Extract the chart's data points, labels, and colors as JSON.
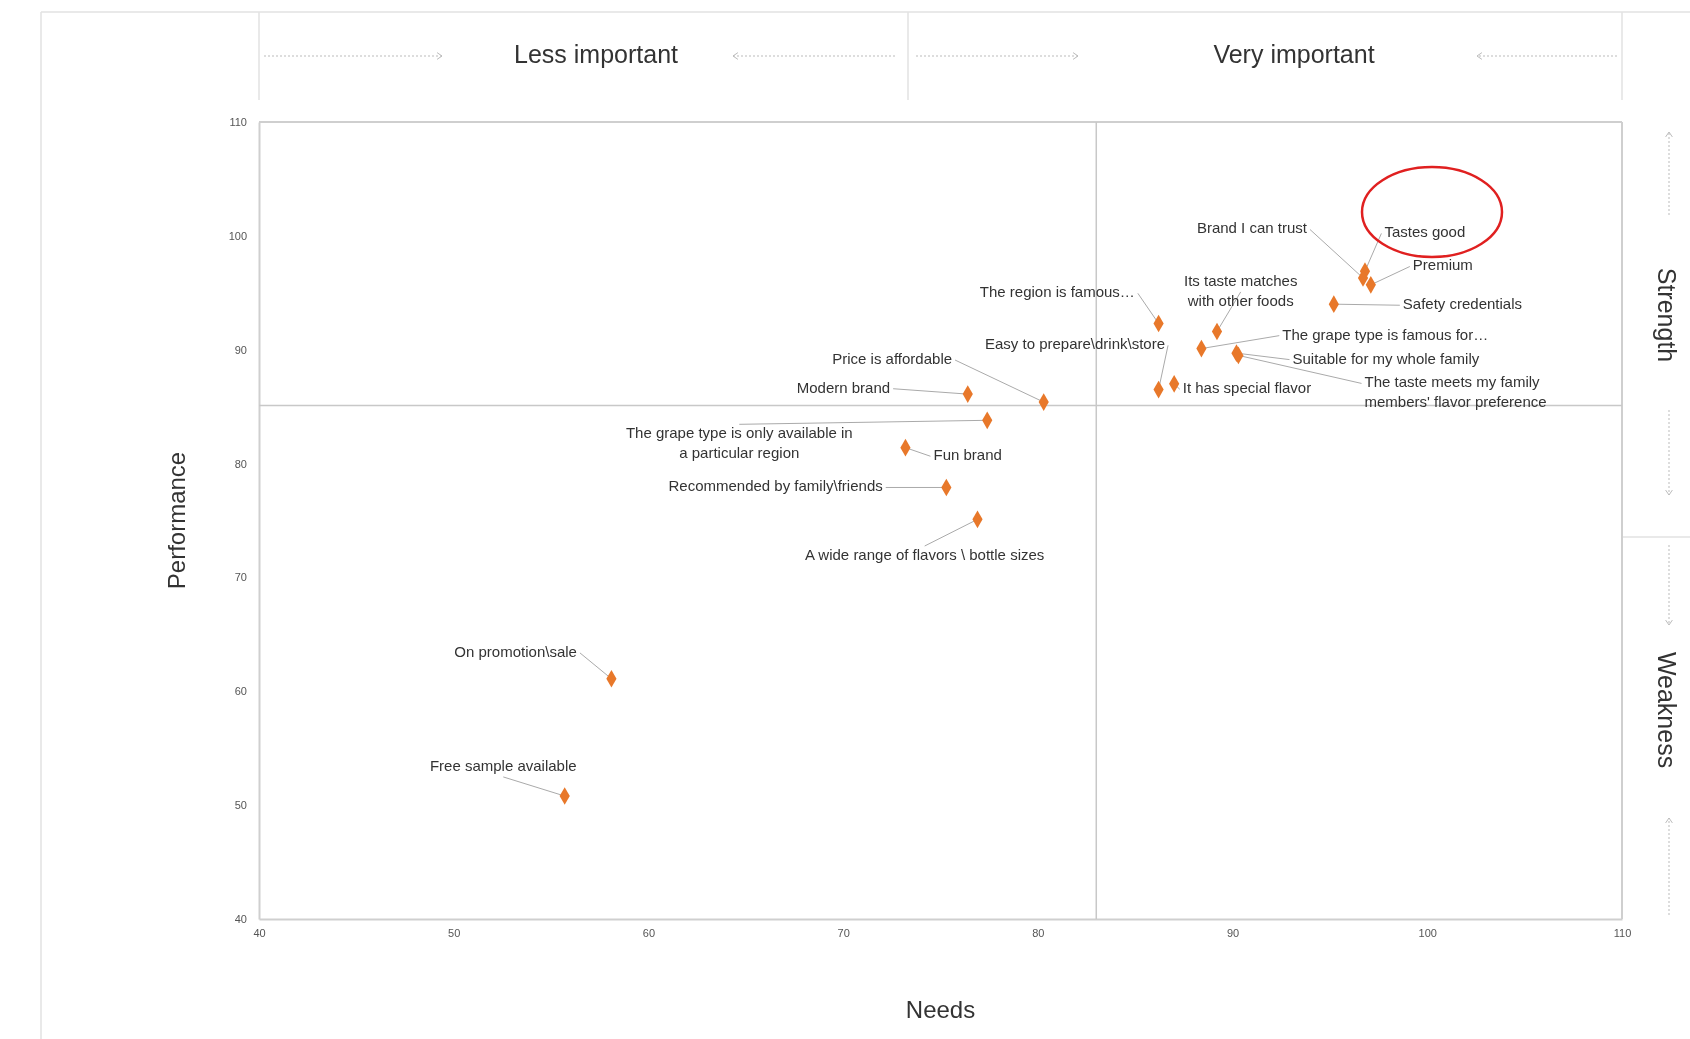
{
  "chart_data": {
    "type": "scatter",
    "xlabel": "Needs",
    "ylabel": "Performance",
    "xlim": [
      40,
      110
    ],
    "xticks": [
      40,
      50,
      60,
      70,
      80,
      90,
      100,
      110
    ],
    "ylim": [
      40,
      110
    ],
    "yticks": [
      40,
      50,
      60,
      70,
      80,
      90,
      100,
      110
    ],
    "grid": false,
    "marker": "diamond",
    "series": [
      {
        "color": "#e8782a",
        "x": [
          96.8,
          96.7,
          97.1,
          95.2,
          86.2,
          89.2,
          88.4,
          90.2,
          90.3,
          87.0,
          86.2,
          80.3,
          76.4,
          77.4,
          73.2,
          75.3,
          76.9,
          58.1,
          55.7
        ],
        "values": [
          96.9,
          96.3,
          95.7,
          94.0,
          92.3,
          91.6,
          90.1,
          89.7,
          89.5,
          87.0,
          86.5,
          85.4,
          86.1,
          83.8,
          81.4,
          77.9,
          75.1,
          61.1,
          50.8
        ]
      }
    ],
    "ref_lines": [
      {
        "axis": "x",
        "value": 83.0,
        "color": "#c8c8c8"
      },
      {
        "axis": "y",
        "value": 85.1,
        "color": "#c8c8c8"
      }
    ],
    "annotations": [
      {
        "text": "Tastes good",
        "x": 96.8,
        "y": 96.9
      },
      {
        "text": "Brand I can trust",
        "x": 96.7,
        "y": 96.3
      },
      {
        "text": "Premium",
        "x": 97.1,
        "y": 95.7
      },
      {
        "text": "Safety credentials",
        "x": 95.2,
        "y": 94.0
      },
      {
        "text": "The region is famous…",
        "x": 86.2,
        "y": 92.3
      },
      {
        "text": "Its taste matches with other foods",
        "x": 89.2,
        "y": 91.6
      },
      {
        "text": "The grape type is famous for…",
        "x": 88.4,
        "y": 90.1
      },
      {
        "text": "Suitable for my whole family",
        "x": 90.2,
        "y": 89.7
      },
      {
        "text": "The taste meets my family members' flavor preference",
        "x": 90.3,
        "y": 89.5
      },
      {
        "text": "It has special flavor",
        "x": 87.0,
        "y": 87.0
      },
      {
        "text": "Easy to prepare\\drink\\store",
        "x": 86.2,
        "y": 86.5
      },
      {
        "text": "Price is affordable",
        "x": 80.3,
        "y": 85.4
      },
      {
        "text": "Modern brand",
        "x": 76.4,
        "y": 86.1
      },
      {
        "text": "The grape type is only available in a particular region",
        "x": 77.4,
        "y": 83.8
      },
      {
        "text": "Fun brand",
        "x": 73.2,
        "y": 81.4
      },
      {
        "text": "Recommended by family\\friends",
        "x": 75.3,
        "y": 77.9
      },
      {
        "text": "A wide range of flavors \\ bottle sizes",
        "x": 76.9,
        "y": 75.1
      },
      {
        "text": "On promotion\\sale",
        "x": 58.1,
        "y": 61.1
      },
      {
        "text": "Free sample available",
        "x": 55.7,
        "y": 50.8
      },
      "Less important",
      "Very important",
      "Strength",
      "Weakness"
    ]
  }
}
